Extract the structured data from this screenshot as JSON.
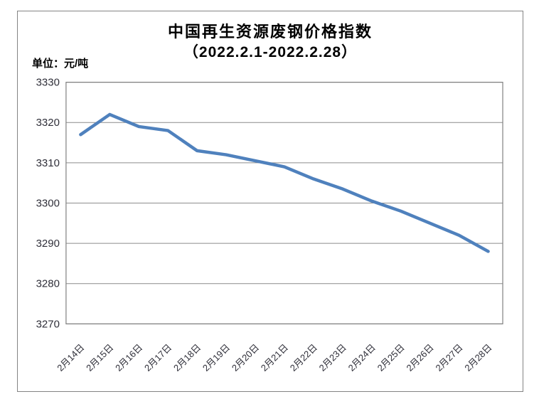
{
  "page": {
    "title": "中国再生资源废钢价格指数",
    "subtitle": "（2022.2.1-2022.2.28）",
    "unit_label": "单位：元/吨"
  },
  "colors": {
    "line": "#4F81BD",
    "gridline": "#8C8C8C",
    "plot_border": "#808080",
    "frame_border": "#848484",
    "tick_text": "#2E2E38",
    "title_text": "#000000",
    "background": "#FFFFFF"
  },
  "chart_data": {
    "type": "line",
    "title": "中国再生资源废钢价格指数",
    "subtitle": "（2022.2.1-2022.2.28）",
    "unit": "元/吨",
    "categories": [
      "2月14日",
      "2月15日",
      "2月16日",
      "2月17日",
      "2月18日",
      "2月19日",
      "2月20日",
      "2月21日",
      "2月22日",
      "2月23日",
      "2月24日",
      "2月25日",
      "2月26日",
      "2月27日",
      "2月28日"
    ],
    "series": [
      {
        "values": [
          3317,
          3322,
          3319,
          3318,
          3313,
          3312,
          3310.5,
          3309,
          3306,
          3303.5,
          3300.5,
          3298,
          3295,
          3292,
          3288
        ]
      }
    ],
    "ylim": [
      3270,
      3330
    ],
    "yticks": [
      3270,
      3280,
      3290,
      3300,
      3310,
      3320,
      3330
    ],
    "ytick_step": 10,
    "grid": true,
    "legend": "none",
    "x_label_rotation": -45
  }
}
